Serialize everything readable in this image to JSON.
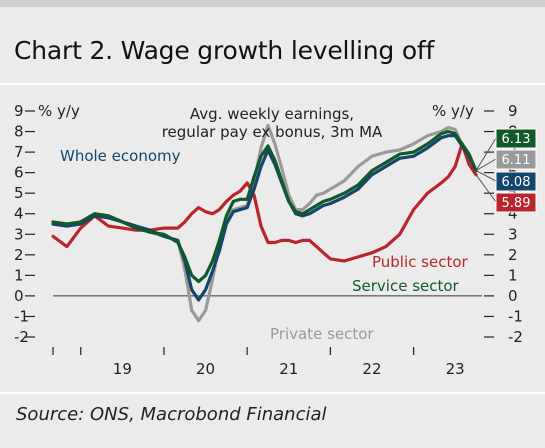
{
  "title": "Chart 2. Wage growth levelling off",
  "source": "Source: ONS, Macrobond Financial",
  "colors": {
    "whole": "#14456b",
    "service": "#11592a",
    "private": "#9a9a9a",
    "public": "#b8252b"
  },
  "chart_data": {
    "type": "line",
    "annotation": "Avg. weekly earnings,\nregular pay ex bonus, 3m MA",
    "y_unit_left": "% y/y",
    "y_unit_right": "% y/y",
    "ylim": [
      -2,
      9
    ],
    "yticks": [
      "-2",
      "-1",
      "0",
      "1",
      "2",
      "3",
      "4",
      "5",
      "6",
      "7",
      "8",
      "9"
    ],
    "xticks": [
      "19",
      "20",
      "21",
      "22",
      "23"
    ],
    "x_start": "2018-09",
    "x_end": "2023-09",
    "series": [
      {
        "name": "Whole economy",
        "key": "whole",
        "end_value": "6.08",
        "values": [
          [
            "2018-09",
            3.5
          ],
          [
            "2018-11",
            3.4
          ],
          [
            "2019-01",
            3.5
          ],
          [
            "2019-03",
            3.9
          ],
          [
            "2019-05",
            3.8
          ],
          [
            "2019-07",
            3.6
          ],
          [
            "2019-09",
            3.4
          ],
          [
            "2019-11",
            3.2
          ],
          [
            "2020-01",
            2.9
          ],
          [
            "2020-03",
            2.7
          ],
          [
            "2020-04",
            1.7
          ],
          [
            "2020-05",
            0.3
          ],
          [
            "2020-06",
            -0.2
          ],
          [
            "2020-07",
            0.3
          ],
          [
            "2020-08",
            1.2
          ],
          [
            "2020-09",
            2.2
          ],
          [
            "2020-10",
            3.5
          ],
          [
            "2020-11",
            4.1
          ],
          [
            "2020-12",
            4.2
          ],
          [
            "2021-01",
            4.3
          ],
          [
            "2021-02",
            5.2
          ],
          [
            "2021-03",
            6.3
          ],
          [
            "2021-04",
            7.1
          ],
          [
            "2021-05",
            6.4
          ],
          [
            "2021-06",
            5.5
          ],
          [
            "2021-07",
            4.6
          ],
          [
            "2021-08",
            4.0
          ],
          [
            "2021-09",
            3.9
          ],
          [
            "2021-10",
            4.0
          ],
          [
            "2021-11",
            4.2
          ],
          [
            "2021-12",
            4.4
          ],
          [
            "2022-01",
            4.5
          ],
          [
            "2022-03",
            4.8
          ],
          [
            "2022-05",
            5.2
          ],
          [
            "2022-07",
            5.9
          ],
          [
            "2022-09",
            6.3
          ],
          [
            "2022-11",
            6.7
          ],
          [
            "2023-01",
            6.8
          ],
          [
            "2023-03",
            7.2
          ],
          [
            "2023-05",
            7.7
          ],
          [
            "2023-06",
            7.8
          ],
          [
            "2023-07",
            7.8
          ],
          [
            "2023-08",
            7.3
          ],
          [
            "2023-09",
            6.8
          ],
          [
            "2023-10",
            6.1
          ]
        ]
      },
      {
        "name": "Service sector",
        "key": "service",
        "end_value": "6.13",
        "values": [
          [
            "2018-09",
            3.6
          ],
          [
            "2018-11",
            3.5
          ],
          [
            "2019-01",
            3.6
          ],
          [
            "2019-03",
            4.0
          ],
          [
            "2019-05",
            3.9
          ],
          [
            "2019-07",
            3.6
          ],
          [
            "2019-09",
            3.3
          ],
          [
            "2019-11",
            3.1
          ],
          [
            "2020-01",
            3.0
          ],
          [
            "2020-03",
            2.6
          ],
          [
            "2020-04",
            1.9
          ],
          [
            "2020-05",
            1.0
          ],
          [
            "2020-06",
            0.7
          ],
          [
            "2020-07",
            1.0
          ],
          [
            "2020-08",
            1.7
          ],
          [
            "2020-09",
            2.7
          ],
          [
            "2020-10",
            3.9
          ],
          [
            "2020-11",
            4.6
          ],
          [
            "2020-12",
            4.7
          ],
          [
            "2021-01",
            4.7
          ],
          [
            "2021-02",
            5.8
          ],
          [
            "2021-03",
            6.8
          ],
          [
            "2021-04",
            7.3
          ],
          [
            "2021-05",
            6.6
          ],
          [
            "2021-06",
            5.6
          ],
          [
            "2021-07",
            4.6
          ],
          [
            "2021-08",
            4.1
          ],
          [
            "2021-09",
            4.0
          ],
          [
            "2021-10",
            4.2
          ],
          [
            "2021-11",
            4.4
          ],
          [
            "2021-12",
            4.6
          ],
          [
            "2022-01",
            4.7
          ],
          [
            "2022-03",
            5.0
          ],
          [
            "2022-05",
            5.4
          ],
          [
            "2022-07",
            6.1
          ],
          [
            "2022-09",
            6.5
          ],
          [
            "2022-11",
            6.9
          ],
          [
            "2023-01",
            7.0
          ],
          [
            "2023-03",
            7.4
          ],
          [
            "2023-05",
            7.9
          ],
          [
            "2023-06",
            8.0
          ],
          [
            "2023-07",
            7.9
          ],
          [
            "2023-08",
            7.4
          ],
          [
            "2023-09",
            6.9
          ],
          [
            "2023-10",
            6.1
          ]
        ]
      },
      {
        "name": "Private sector",
        "key": "private",
        "end_value": "6.11",
        "values": [
          [
            "2018-09",
            3.5
          ],
          [
            "2018-11",
            3.4
          ],
          [
            "2019-01",
            3.6
          ],
          [
            "2019-03",
            4.0
          ],
          [
            "2019-05",
            3.9
          ],
          [
            "2019-07",
            3.6
          ],
          [
            "2019-09",
            3.4
          ],
          [
            "2019-11",
            3.1
          ],
          [
            "2020-01",
            2.9
          ],
          [
            "2020-03",
            2.7
          ],
          [
            "2020-04",
            1.3
          ],
          [
            "2020-05",
            -0.7
          ],
          [
            "2020-06",
            -1.2
          ],
          [
            "2020-07",
            -0.7
          ],
          [
            "2020-08",
            0.8
          ],
          [
            "2020-09",
            2.5
          ],
          [
            "2020-10",
            3.8
          ],
          [
            "2020-11",
            4.2
          ],
          [
            "2020-12",
            4.3
          ],
          [
            "2021-01",
            4.4
          ],
          [
            "2021-02",
            5.6
          ],
          [
            "2021-03",
            7.2
          ],
          [
            "2021-04",
            8.3
          ],
          [
            "2021-05",
            7.4
          ],
          [
            "2021-06",
            6.2
          ],
          [
            "2021-07",
            4.9
          ],
          [
            "2021-08",
            4.2
          ],
          [
            "2021-09",
            4.2
          ],
          [
            "2021-10",
            4.5
          ],
          [
            "2021-11",
            4.9
          ],
          [
            "2021-12",
            5.0
          ],
          [
            "2022-01",
            5.2
          ],
          [
            "2022-03",
            5.6
          ],
          [
            "2022-05",
            6.3
          ],
          [
            "2022-07",
            6.8
          ],
          [
            "2022-09",
            7.0
          ],
          [
            "2022-11",
            7.1
          ],
          [
            "2023-01",
            7.4
          ],
          [
            "2023-03",
            7.8
          ],
          [
            "2023-05",
            8.0
          ],
          [
            "2023-06",
            8.2
          ],
          [
            "2023-07",
            8.1
          ],
          [
            "2023-08",
            7.3
          ],
          [
            "2023-09",
            6.7
          ],
          [
            "2023-10",
            6.1
          ]
        ]
      },
      {
        "name": "Public sector",
        "key": "public",
        "end_value": "5.89",
        "values": [
          [
            "2018-09",
            2.9
          ],
          [
            "2018-11",
            2.4
          ],
          [
            "2019-01",
            3.3
          ],
          [
            "2019-03",
            3.9
          ],
          [
            "2019-05",
            3.4
          ],
          [
            "2019-07",
            3.3
          ],
          [
            "2019-09",
            3.2
          ],
          [
            "2019-11",
            3.2
          ],
          [
            "2020-01",
            3.3
          ],
          [
            "2020-03",
            3.3
          ],
          [
            "2020-04",
            3.6
          ],
          [
            "2020-05",
            4.0
          ],
          [
            "2020-06",
            4.3
          ],
          [
            "2020-07",
            4.1
          ],
          [
            "2020-08",
            4.0
          ],
          [
            "2020-09",
            4.2
          ],
          [
            "2020-10",
            4.6
          ],
          [
            "2020-11",
            4.9
          ],
          [
            "2020-12",
            5.1
          ],
          [
            "2021-01",
            5.5
          ],
          [
            "2021-02",
            4.9
          ],
          [
            "2021-03",
            3.4
          ],
          [
            "2021-04",
            2.6
          ],
          [
            "2021-05",
            2.6
          ],
          [
            "2021-06",
            2.7
          ],
          [
            "2021-07",
            2.7
          ],
          [
            "2021-08",
            2.6
          ],
          [
            "2021-09",
            2.7
          ],
          [
            "2021-10",
            2.7
          ],
          [
            "2021-11",
            2.4
          ],
          [
            "2021-12",
            2.1
          ],
          [
            "2022-01",
            1.8
          ],
          [
            "2022-03",
            1.7
          ],
          [
            "2022-05",
            1.9
          ],
          [
            "2022-07",
            2.1
          ],
          [
            "2022-09",
            2.4
          ],
          [
            "2022-11",
            3.0
          ],
          [
            "2023-01",
            4.2
          ],
          [
            "2023-03",
            5.0
          ],
          [
            "2023-05",
            5.5
          ],
          [
            "2023-06",
            5.8
          ],
          [
            "2023-07",
            6.3
          ],
          [
            "2023-08",
            7.4
          ],
          [
            "2023-09",
            6.4
          ],
          [
            "2023-10",
            5.9
          ]
        ]
      }
    ],
    "labels": {
      "whole": "Whole economy",
      "service": "Service sector",
      "private": "Private sector",
      "public": "Public sector"
    },
    "grid": false
  }
}
